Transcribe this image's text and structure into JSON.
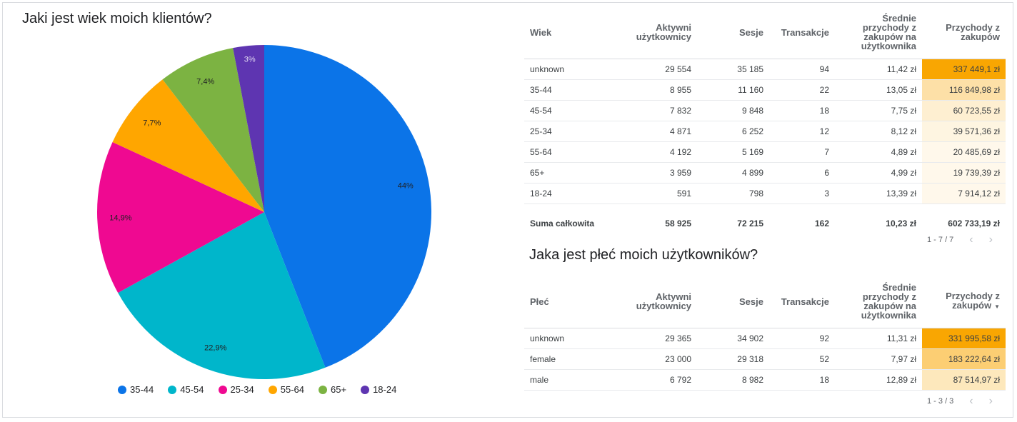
{
  "chart_data": {
    "type": "pie",
    "title": "Jaki jest wiek moich klientów?",
    "categories": [
      "35-44",
      "45-54",
      "25-34",
      "55-64",
      "65+",
      "18-24"
    ],
    "values": [
      44,
      22.9,
      14.9,
      7.7,
      7.4,
      3
    ],
    "labels": [
      "44%",
      "22,9%",
      "14,9%",
      "7,7%",
      "7,4%",
      "3%"
    ],
    "colors": [
      "#0b74e8",
      "#00b6cb",
      "#ef0991",
      "#ffa600",
      "#7cb342",
      "#5e35b1"
    ],
    "legend_position": "bottom"
  },
  "table_age": {
    "headers": {
      "c0": "Wiek",
      "c1": "Aktywni użytkownicy",
      "c2": "Sesje",
      "c3": "Transakcje",
      "c4": "Średnie przychody z zakupów na użytkownika",
      "c5": "Przychody z zakupów"
    },
    "rows": [
      [
        "unknown",
        "29 554",
        "35 185",
        "94",
        "11,42 zł",
        "337 449,1 zł"
      ],
      [
        "35-44",
        "8 955",
        "11 160",
        "22",
        "13,05 zł",
        "116 849,98 zł"
      ],
      [
        "45-54",
        "7 832",
        "9 848",
        "18",
        "7,75 zł",
        "60 723,55 zł"
      ],
      [
        "25-34",
        "4 871",
        "6 252",
        "12",
        "8,12 zł",
        "39 571,36 zł"
      ],
      [
        "55-64",
        "4 192",
        "5 169",
        "7",
        "4,89 zł",
        "20 485,69 zł"
      ],
      [
        "65+",
        "3 959",
        "4 899",
        "6",
        "4,99 zł",
        "19 739,39 zł"
      ],
      [
        "18-24",
        "591",
        "798",
        "3",
        "13,39 zł",
        "7 914,12 zł"
      ]
    ],
    "heat_values": [
      337449.1,
      116849.98,
      60723.55,
      39571.36,
      20485.69,
      19739.39,
      7914.12
    ],
    "total": [
      "Suma całkowita",
      "58 925",
      "72 215",
      "162",
      "10,23 zł",
      "602 733,19 zł"
    ],
    "pager": "1 - 7 / 7"
  },
  "gender_title": "Jaka jest płeć moich użytkowników?",
  "table_gender": {
    "headers": {
      "c0": "Płeć",
      "c1": "Aktywni użytkownicy",
      "c2": "Sesje",
      "c3": "Transakcje",
      "c4": "Średnie przychody z zakupów na użytkownika",
      "c5": "Przychody z zakupów"
    },
    "rows": [
      [
        "unknown",
        "29 365",
        "34 902",
        "92",
        "11,31 zł",
        "331 995,58 zł"
      ],
      [
        "female",
        "23 000",
        "29 318",
        "52",
        "7,97 zł",
        "183 222,64 zł"
      ],
      [
        "male",
        "6 792",
        "8 982",
        "18",
        "12,89 zł",
        "87 514,97 zł"
      ]
    ],
    "heat_values": [
      331995.58,
      183222.64,
      87514.97
    ],
    "pager": "1 - 3 / 3"
  },
  "heat_color": "#f9a602",
  "icons": {
    "prev": "chevron-left-icon",
    "next": "chevron-right-icon",
    "sort": "sort-desc-icon"
  }
}
